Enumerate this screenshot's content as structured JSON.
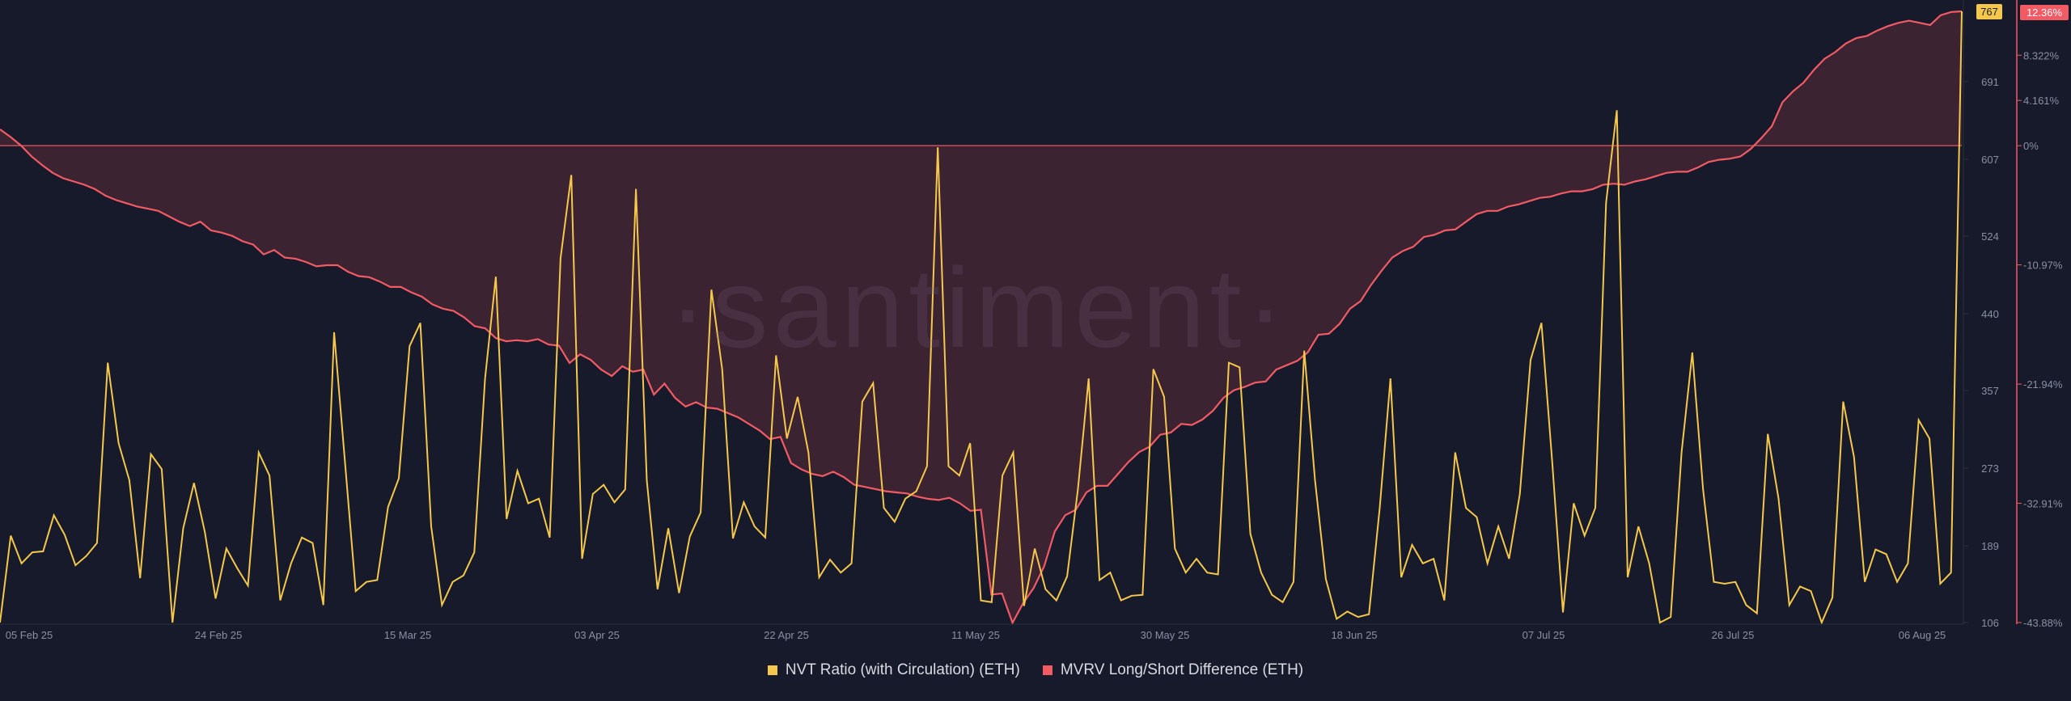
{
  "watermark": "·santiment·",
  "colors": {
    "background": "#161a2b",
    "nvt": "#f5c84b",
    "mvrv": "#f25a64",
    "mvrv_fill": "#3d2433",
    "grid": "#232838"
  },
  "legend": {
    "nvt": "NVT Ratio (with Circulation) (ETH)",
    "mvrv": "MVRV Long/Short Difference (ETH)"
  },
  "chart_data": {
    "type": "line",
    "x_tick_labels": [
      "05 Feb 25",
      "24 Feb 25",
      "15 Mar 25",
      "03 Apr 25",
      "22 Apr 25",
      "11 May 25",
      "30 May 25",
      "18 Jun 25",
      "07 Jul 25",
      "26 Jul 25",
      "06 Aug 25"
    ],
    "nvt_axis": {
      "ticks": [
        "691",
        "607",
        "524",
        "440",
        "357",
        "273",
        "189",
        "106"
      ],
      "ylim": [
        106,
        767
      ],
      "last_value_label": "767"
    },
    "mvrv_axis": {
      "ticks": [
        "8.322%",
        "4.161%",
        "0%",
        "-10.97%",
        "-21.94%",
        "-32.91%",
        "-43.88%"
      ],
      "ylim": [
        -43.88,
        12.36
      ],
      "last_value_label": "12.36%"
    },
    "series": [
      {
        "name": "NVT Ratio (with Circulation) (ETH)",
        "axis": "left",
        "values": [
          106,
          200,
          170,
          182,
          183,
          222,
          201,
          168,
          178,
          192,
          387,
          300,
          260,
          154,
          288,
          272,
          106,
          208,
          257,
          204,
          132,
          186,
          165,
          146,
          290,
          265,
          130,
          170,
          198,
          192,
          125,
          420,
          280,
          140,
          150,
          152,
          231,
          262,
          405,
          430,
          210,
          125,
          150,
          157,
          182,
          370,
          480,
          218,
          270,
          235,
          240,
          198,
          500,
          590,
          175,
          245,
          255,
          236,
          250,
          575,
          260,
          142,
          208,
          138,
          199,
          225,
          466,
          380,
          197,
          236,
          210,
          198,
          395,
          305,
          350,
          290,
          155,
          174,
          160,
          170,
          345,
          365,
          230,
          215,
          240,
          248,
          275,
          620,
          275,
          265,
          300,
          130,
          128,
          265,
          290,
          124,
          186,
          142,
          130,
          156,
          250,
          370,
          152,
          160,
          130,
          135,
          136,
          380,
          350,
          186,
          160,
          175,
          160,
          158,
          387,
          382,
          202,
          160,
          136,
          128,
          150,
          400,
          260,
          153,
          110,
          118,
          112,
          115,
          230,
          370,
          155,
          190,
          170,
          175,
          130,
          290,
          230,
          220,
          170,
          210,
          175,
          245,
          390,
          430,
          280,
          117,
          235,
          200,
          230,
          560,
          660,
          155,
          210,
          170,
          106,
          112,
          290,
          398,
          250,
          150,
          148,
          150,
          125,
          116,
          310,
          240,
          125,
          145,
          140,
          106,
          133,
          345,
          285,
          150,
          185,
          180,
          150,
          170,
          325,
          305,
          148,
          160,
          767
        ]
      },
      {
        "name": "MVRV Long/Short Difference (ETH)",
        "axis": "right",
        "values": [
          1.5,
          0.8,
          0.0,
          -1.0,
          -1.8,
          -2.5,
          -3.0,
          -3.3,
          -3.6,
          -4.0,
          -4.6,
          -5.0,
          -5.3,
          -5.6,
          -5.8,
          -6.0,
          -6.5,
          -7.0,
          -7.4,
          -7.0,
          -7.8,
          -8.0,
          -8.3,
          -8.8,
          -9.1,
          -10.0,
          -9.6,
          -10.3,
          -10.4,
          -10.7,
          -11.1,
          -11.0,
          -11.0,
          -11.6,
          -12.0,
          -12.1,
          -12.5,
          -13.0,
          -13.0,
          -13.5,
          -13.9,
          -14.6,
          -15.0,
          -15.2,
          -15.8,
          -16.6,
          -16.8,
          -17.7,
          -18.0,
          -17.9,
          -18.0,
          -17.8,
          -18.3,
          -18.4,
          -20.0,
          -19.2,
          -19.7,
          -20.6,
          -21.2,
          -20.3,
          -20.8,
          -20.6,
          -22.9,
          -21.9,
          -23.2,
          -24.0,
          -23.6,
          -24.1,
          -24.2,
          -24.6,
          -25.0,
          -25.6,
          -26.2,
          -27.0,
          -26.8,
          -29.2,
          -29.8,
          -30.2,
          -30.4,
          -30.0,
          -30.5,
          -31.2,
          -31.4,
          -31.6,
          -31.8,
          -31.9,
          -32.0,
          -32.3,
          -32.5,
          -32.6,
          -32.4,
          -32.9,
          -33.6,
          -33.5,
          -41.3,
          -41.2,
          -43.9,
          -42.1,
          -40.7,
          -38.7,
          -35.5,
          -34.0,
          -33.5,
          -31.9,
          -31.3,
          -31.3,
          -30.2,
          -29.1,
          -28.2,
          -27.7,
          -26.6,
          -26.4,
          -25.6,
          -25.7,
          -25.2,
          -24.4,
          -23.2,
          -22.5,
          -22.2,
          -21.8,
          -21.7,
          -20.6,
          -20.2,
          -19.8,
          -19.0,
          -17.4,
          -17.3,
          -16.4,
          -15.0,
          -14.3,
          -12.8,
          -11.5,
          -10.3,
          -9.7,
          -9.3,
          -8.4,
          -8.2,
          -7.8,
          -7.7,
          -7.0,
          -6.3,
          -6.0,
          -6.0,
          -5.6,
          -5.4,
          -5.1,
          -4.8,
          -4.7,
          -4.4,
          -4.2,
          -4.2,
          -4.0,
          -3.6,
          -3.5,
          -3.6,
          -3.3,
          -3.1,
          -2.8,
          -2.5,
          -2.4,
          -2.4,
          -2.0,
          -1.5,
          -1.3,
          -1.2,
          -1.0,
          -0.3,
          0.7,
          1.8,
          4.0,
          5.0,
          5.8,
          7.0,
          8.0,
          8.6,
          9.4,
          9.9,
          10.1,
          10.6,
          11.0,
          11.3,
          11.5,
          11.3,
          11.1,
          12.0,
          12.3,
          12.36
        ]
      }
    ],
    "grid": false,
    "legend_position": "bottom-center"
  }
}
